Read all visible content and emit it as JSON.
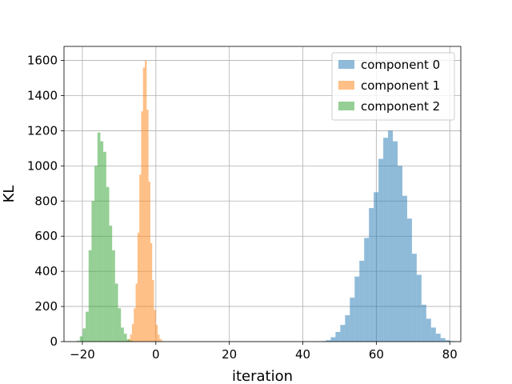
{
  "chart_data": {
    "type": "bar",
    "subtype": "histogram",
    "title": "",
    "xlabel": "iteration",
    "ylabel": "KL",
    "xlim": [
      -25,
      83
    ],
    "ylim": [
      0,
      1680
    ],
    "xticks": [
      -20,
      0,
      20,
      40,
      60,
      80
    ],
    "yticks": [
      0,
      200,
      400,
      600,
      800,
      1000,
      1200,
      1400,
      1600
    ],
    "grid": true,
    "legend_position": "top-right",
    "bar_opacity": 0.5,
    "series": [
      {
        "name": "component 0",
        "color": "#1f77b4",
        "bin_width": 1.3,
        "x_start": 45.0,
        "counts": [
          3,
          8,
          25,
          55,
          95,
          150,
          250,
          370,
          460,
          590,
          760,
          850,
          1040,
          1160,
          1200,
          1140,
          1000,
          830,
          700,
          500,
          380,
          210,
          130,
          80,
          45,
          20,
          8,
          3
        ]
      },
      {
        "name": "component 1",
        "color": "#ff7f0e",
        "bin_width": 0.5,
        "x_start": -8.0,
        "counts": [
          5,
          15,
          40,
          100,
          190,
          330,
          620,
          950,
          1310,
          1560,
          1600,
          1320,
          910,
          560,
          350,
          180,
          95,
          40,
          15,
          5
        ]
      },
      {
        "name": "component 2",
        "color": "#2ca02c",
        "bin_width": 0.8,
        "x_start": -21.5,
        "counts": [
          5,
          30,
          75,
          170,
          520,
          800,
          1000,
          1190,
          1140,
          1080,
          880,
          660,
          520,
          330,
          190,
          80,
          45,
          12,
          5
        ]
      }
    ]
  }
}
